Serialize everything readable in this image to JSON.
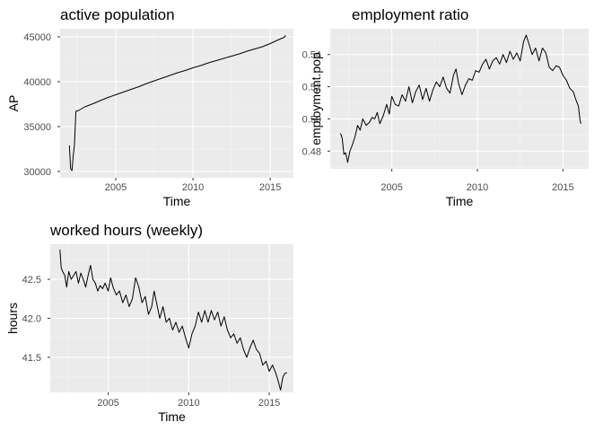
{
  "chart_data": [
    {
      "type": "line",
      "title": "active population",
      "xlabel": "Time",
      "ylabel": "AP",
      "xlim": [
        2001.4,
        2016.5
      ],
      "ylim": [
        29300,
        45900
      ],
      "xticks": [
        2005,
        2010,
        2015
      ],
      "yticks": [
        30000,
        35000,
        40000,
        45000
      ],
      "xtick_labels": [
        "2005",
        "2010",
        "2015"
      ],
      "ytick_labels": [
        "30000",
        "35000",
        "40000",
        "45000"
      ],
      "grid": true,
      "series": [
        {
          "points": [
            [
              2002.0,
              32900
            ],
            [
              2002.08,
              30300
            ],
            [
              2002.17,
              30100
            ],
            [
              2002.25,
              31800
            ],
            [
              2002.33,
              33000
            ],
            [
              2002.42,
              36700
            ],
            [
              2002.6,
              36800
            ],
            [
              2002.8,
              37000
            ],
            [
              2003.0,
              37200
            ],
            [
              2003.3,
              37400
            ],
            [
              2003.6,
              37600
            ],
            [
              2004.0,
              37900
            ],
            [
              2004.5,
              38250
            ],
            [
              2005.0,
              38550
            ],
            [
              2005.5,
              38850
            ],
            [
              2006.0,
              39150
            ],
            [
              2006.5,
              39450
            ],
            [
              2007.0,
              39800
            ],
            [
              2007.5,
              40100
            ],
            [
              2008.0,
              40400
            ],
            [
              2008.5,
              40700
            ],
            [
              2009.0,
              41000
            ],
            [
              2009.5,
              41250
            ],
            [
              2010.0,
              41550
            ],
            [
              2010.5,
              41800
            ],
            [
              2011.0,
              42100
            ],
            [
              2011.5,
              42350
            ],
            [
              2012.0,
              42600
            ],
            [
              2012.5,
              42850
            ],
            [
              2013.0,
              43100
            ],
            [
              2013.5,
              43400
            ],
            [
              2014.0,
              43650
            ],
            [
              2014.5,
              43900
            ],
            [
              2015.0,
              44250
            ],
            [
              2015.5,
              44650
            ],
            [
              2015.9,
              44950
            ],
            [
              2016.0,
              45150
            ]
          ]
        }
      ]
    },
    {
      "type": "line",
      "title": "employment ratio",
      "xlabel": "Time",
      "ylabel": "employment.pop",
      "xlim": [
        2001.4,
        2016.5
      ],
      "ylim": [
        0.469,
        0.556
      ],
      "xticks": [
        2005,
        2010,
        2015
      ],
      "yticks": [
        0.48,
        0.5,
        0.52,
        0.54
      ],
      "xtick_labels": [
        "2005",
        "2010",
        "2015"
      ],
      "ytick_labels": [
        "0.48",
        "0.50",
        "0.52",
        "0.54"
      ],
      "grid": true,
      "series": [
        {
          "points": [
            [
              2002.0,
              0.491
            ],
            [
              2002.1,
              0.488
            ],
            [
              2002.2,
              0.478
            ],
            [
              2002.3,
              0.479
            ],
            [
              2002.42,
              0.473
            ],
            [
              2002.55,
              0.48
            ],
            [
              2002.7,
              0.484
            ],
            [
              2002.85,
              0.489
            ],
            [
              2003.0,
              0.496
            ],
            [
              2003.15,
              0.493
            ],
            [
              2003.3,
              0.5
            ],
            [
              2003.5,
              0.496
            ],
            [
              2003.7,
              0.498
            ],
            [
              2003.85,
              0.501
            ],
            [
              2004.0,
              0.5
            ],
            [
              2004.15,
              0.504
            ],
            [
              2004.3,
              0.497
            ],
            [
              2004.5,
              0.502
            ],
            [
              2004.7,
              0.509
            ],
            [
              2004.85,
              0.503
            ],
            [
              2005.0,
              0.514
            ],
            [
              2005.2,
              0.509
            ],
            [
              2005.4,
              0.508
            ],
            [
              2005.6,
              0.515
            ],
            [
              2005.8,
              0.511
            ],
            [
              2006.0,
              0.52
            ],
            [
              2006.2,
              0.51
            ],
            [
              2006.4,
              0.517
            ],
            [
              2006.6,
              0.521
            ],
            [
              2006.8,
              0.512
            ],
            [
              2007.0,
              0.519
            ],
            [
              2007.2,
              0.511
            ],
            [
              2007.4,
              0.518
            ],
            [
              2007.6,
              0.523
            ],
            [
              2007.8,
              0.52
            ],
            [
              2008.0,
              0.526
            ],
            [
              2008.2,
              0.519
            ],
            [
              2008.4,
              0.516
            ],
            [
              2008.6,
              0.527
            ],
            [
              2008.75,
              0.531
            ],
            [
              2008.9,
              0.522
            ],
            [
              2009.1,
              0.515
            ],
            [
              2009.3,
              0.521
            ],
            [
              2009.5,
              0.525
            ],
            [
              2009.7,
              0.524
            ],
            [
              2009.9,
              0.53
            ],
            [
              2010.1,
              0.529
            ],
            [
              2010.3,
              0.534
            ],
            [
              2010.5,
              0.537
            ],
            [
              2010.7,
              0.531
            ],
            [
              2010.9,
              0.536
            ],
            [
              2011.1,
              0.538
            ],
            [
              2011.3,
              0.534
            ],
            [
              2011.5,
              0.54
            ],
            [
              2011.7,
              0.535
            ],
            [
              2011.9,
              0.542
            ],
            [
              2012.1,
              0.537
            ],
            [
              2012.3,
              0.541
            ],
            [
              2012.5,
              0.536
            ],
            [
              2012.7,
              0.548
            ],
            [
              2012.85,
              0.552
            ],
            [
              2013.0,
              0.547
            ],
            [
              2013.2,
              0.54
            ],
            [
              2013.4,
              0.544
            ],
            [
              2013.6,
              0.536
            ],
            [
              2013.8,
              0.544
            ],
            [
              2014.0,
              0.541
            ],
            [
              2014.2,
              0.532
            ],
            [
              2014.4,
              0.53
            ],
            [
              2014.6,
              0.533
            ],
            [
              2014.8,
              0.532
            ],
            [
              2015.0,
              0.527
            ],
            [
              2015.2,
              0.524
            ],
            [
              2015.4,
              0.519
            ],
            [
              2015.6,
              0.517
            ],
            [
              2015.75,
              0.512
            ],
            [
              2015.9,
              0.508
            ],
            [
              2016.0,
              0.499
            ],
            [
              2016.05,
              0.497
            ]
          ]
        }
      ]
    },
    {
      "type": "line",
      "title": "worked hours (weekly)",
      "xlabel": "Time",
      "ylabel": "hours",
      "xlim": [
        2001.4,
        2016.5
      ],
      "ylim": [
        41.05,
        42.95
      ],
      "xticks": [
        2005,
        2010,
        2015
      ],
      "yticks": [
        41.5,
        42.0,
        42.5
      ],
      "xtick_labels": [
        "2005",
        "2010",
        "2015"
      ],
      "ytick_labels": [
        "41.5",
        "42.0",
        "42.5"
      ],
      "grid": true,
      "series": [
        {
          "points": [
            [
              2002.0,
              42.88
            ],
            [
              2002.08,
              42.65
            ],
            [
              2002.17,
              42.6
            ],
            [
              2002.3,
              42.55
            ],
            [
              2002.42,
              42.4
            ],
            [
              2002.55,
              42.6
            ],
            [
              2002.7,
              42.5
            ],
            [
              2002.85,
              42.55
            ],
            [
              2003.0,
              42.6
            ],
            [
              2003.15,
              42.45
            ],
            [
              2003.3,
              42.58
            ],
            [
              2003.45,
              42.5
            ],
            [
              2003.6,
              42.4
            ],
            [
              2003.75,
              42.55
            ],
            [
              2003.9,
              42.68
            ],
            [
              2004.05,
              42.5
            ],
            [
              2004.2,
              42.45
            ],
            [
              2004.35,
              42.35
            ],
            [
              2004.5,
              42.42
            ],
            [
              2004.65,
              42.38
            ],
            [
              2004.8,
              42.45
            ],
            [
              2005.0,
              42.35
            ],
            [
              2005.15,
              42.52
            ],
            [
              2005.3,
              42.4
            ],
            [
              2005.5,
              42.3
            ],
            [
              2005.7,
              42.35
            ],
            [
              2005.9,
              42.2
            ],
            [
              2006.1,
              42.3
            ],
            [
              2006.3,
              42.15
            ],
            [
              2006.5,
              42.25
            ],
            [
              2006.7,
              42.52
            ],
            [
              2006.9,
              42.4
            ],
            [
              2007.1,
              42.2
            ],
            [
              2007.3,
              42.28
            ],
            [
              2007.5,
              42.05
            ],
            [
              2007.7,
              42.15
            ],
            [
              2007.85,
              42.35
            ],
            [
              2008.0,
              42.2
            ],
            [
              2008.2,
              42.0
            ],
            [
              2008.4,
              42.15
            ],
            [
              2008.6,
              41.95
            ],
            [
              2008.8,
              42.0
            ],
            [
              2009.0,
              41.85
            ],
            [
              2009.2,
              41.95
            ],
            [
              2009.4,
              41.82
            ],
            [
              2009.6,
              41.9
            ],
            [
              2009.8,
              41.75
            ],
            [
              2010.0,
              41.62
            ],
            [
              2010.2,
              41.8
            ],
            [
              2010.4,
              41.9
            ],
            [
              2010.6,
              42.08
            ],
            [
              2010.8,
              41.95
            ],
            [
              2011.0,
              42.1
            ],
            [
              2011.2,
              41.95
            ],
            [
              2011.4,
              42.1
            ],
            [
              2011.6,
              41.98
            ],
            [
              2011.8,
              42.08
            ],
            [
              2012.0,
              41.9
            ],
            [
              2012.2,
              42.02
            ],
            [
              2012.4,
              41.85
            ],
            [
              2012.6,
              41.75
            ],
            [
              2012.8,
              41.8
            ],
            [
              2013.0,
              41.68
            ],
            [
              2013.2,
              41.75
            ],
            [
              2013.4,
              41.6
            ],
            [
              2013.6,
              41.5
            ],
            [
              2013.8,
              41.62
            ],
            [
              2014.0,
              41.72
            ],
            [
              2014.2,
              41.6
            ],
            [
              2014.4,
              41.55
            ],
            [
              2014.6,
              41.4
            ],
            [
              2014.8,
              41.45
            ],
            [
              2015.0,
              41.32
            ],
            [
              2015.2,
              41.4
            ],
            [
              2015.4,
              41.3
            ],
            [
              2015.55,
              41.2
            ],
            [
              2015.7,
              41.08
            ],
            [
              2015.85,
              41.25
            ],
            [
              2016.0,
              41.3
            ],
            [
              2016.1,
              41.3
            ]
          ]
        }
      ]
    }
  ]
}
